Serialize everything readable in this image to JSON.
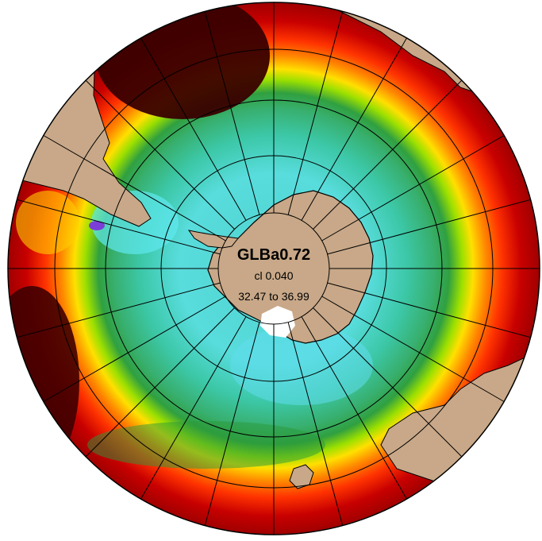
{
  "map": {
    "title": "GLBa0.72",
    "contour_interval": "cl 0.040",
    "range": "32.47 to 36.99",
    "projection": "south-polar-stereographic",
    "graticule": {
      "meridian_step_deg": 15,
      "parallel_rings": 5
    },
    "colors": {
      "land": "#c8a888",
      "graticule": "#000000",
      "outline": "#000000",
      "sea_ice": "#ffffff",
      "colormap": [
        "#1a0000",
        "#6e0000",
        "#c80000",
        "#ff4000",
        "#ff8800",
        "#ffe000",
        "#9cf000",
        "#28b428",
        "#30c896",
        "#40e0dc",
        "#60c8e0",
        "#7b3fd8"
      ]
    }
  }
}
